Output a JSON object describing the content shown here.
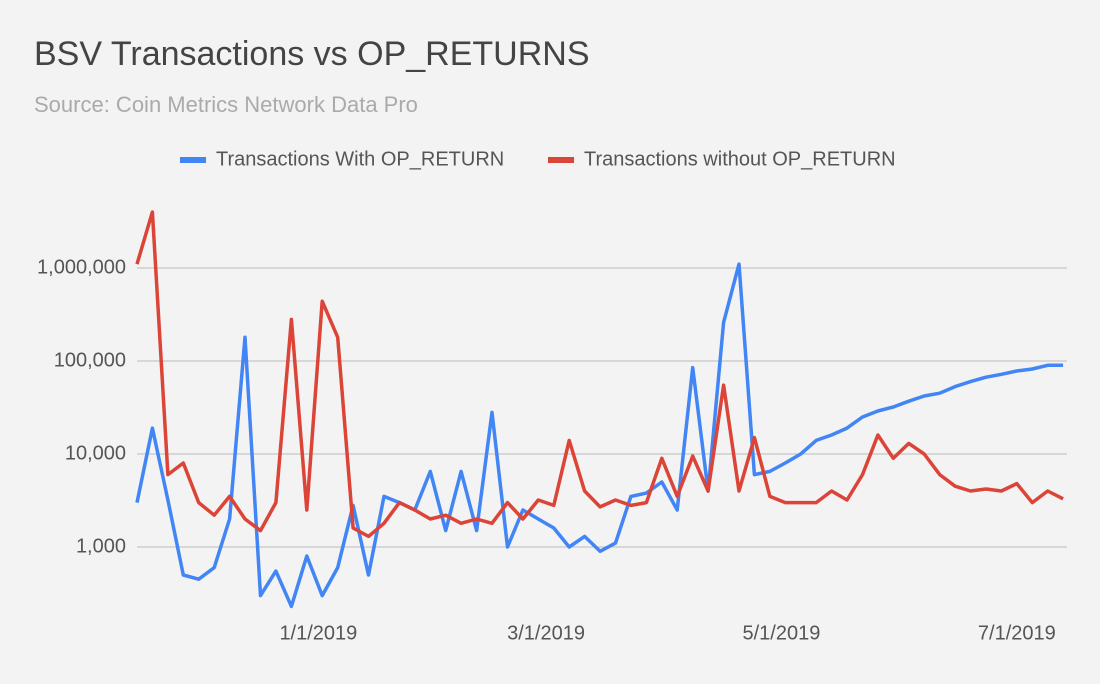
{
  "chart_data": {
    "type": "line",
    "title": "BSV Transactions vs OP_RETURNS",
    "subtitle": "Source: Coin Metrics Network Data Pro",
    "x": [
      "11/15/2018",
      "11/19/2018",
      "11/23/2018",
      "11/27/2018",
      "12/1/2018",
      "12/5/2018",
      "12/9/2018",
      "12/13/2018",
      "12/17/2018",
      "12/21/2018",
      "12/25/2018",
      "12/29/2018",
      "1/2/2019",
      "1/6/2019",
      "1/10/2019",
      "1/14/2019",
      "1/18/2019",
      "1/22/2019",
      "1/26/2019",
      "1/30/2019",
      "2/3/2019",
      "2/7/2019",
      "2/11/2019",
      "2/15/2019",
      "2/19/2019",
      "2/23/2019",
      "2/27/2019",
      "3/3/2019",
      "3/7/2019",
      "3/11/2019",
      "3/15/2019",
      "3/19/2019",
      "3/23/2019",
      "3/27/2019",
      "3/31/2019",
      "4/4/2019",
      "4/8/2019",
      "4/12/2019",
      "4/16/2019",
      "4/20/2019",
      "4/24/2019",
      "4/28/2019",
      "5/2/2019",
      "5/6/2019",
      "5/10/2019",
      "5/14/2019",
      "5/18/2019",
      "5/22/2019",
      "5/26/2019",
      "5/30/2019",
      "6/3/2019",
      "6/7/2019",
      "6/11/2019",
      "6/15/2019",
      "6/19/2019",
      "6/23/2019",
      "6/27/2019",
      "7/1/2019",
      "7/5/2019",
      "7/9/2019",
      "7/13/2019"
    ],
    "series": [
      {
        "name": "Transactions With OP_RETURN",
        "color": "#4285f4",
        "values": [
          3000,
          19000,
          3200,
          500,
          450,
          600,
          2000,
          180000,
          300,
          550,
          230,
          800,
          300,
          600,
          2800,
          500,
          3500,
          3000,
          2500,
          6500,
          1500,
          6500,
          1500,
          28000,
          1000,
          2500,
          2000,
          1600,
          1000,
          1300,
          900,
          1100,
          3500,
          3800,
          5000,
          2500,
          85000,
          4000,
          260000,
          1100000,
          6000,
          6500,
          8000,
          10000,
          14000,
          16000,
          19000,
          25000,
          29000,
          32000,
          37000,
          42000,
          45000,
          53000,
          60000,
          67000,
          72000,
          78000,
          82000,
          90000,
          90000
        ]
      },
      {
        "name": "Transactions without OP_RETURN",
        "color": "#db4437",
        "values": [
          1100000,
          4000000,
          6000,
          8000,
          3000,
          2200,
          3500,
          2000,
          1500,
          3000,
          280000,
          2500,
          440000,
          180000,
          1600,
          1300,
          1800,
          3000,
          2500,
          2000,
          2200,
          1800,
          2000,
          1800,
          3000,
          2000,
          3200,
          2800,
          14000,
          4000,
          2700,
          3200,
          2800,
          3000,
          9000,
          3500,
          9500,
          4000,
          55000,
          4000,
          15000,
          3500,
          3000,
          3000,
          3000,
          4000,
          3200,
          6000,
          16000,
          9000,
          13000,
          10000,
          6000,
          4500,
          4000,
          4200,
          4000,
          4800,
          3000,
          4000,
          3300
        ]
      }
    ],
    "xlim": [
      "11/15/2018",
      "7/14/2019"
    ],
    "xticks": [
      "1/1/2019",
      "3/1/2019",
      "5/1/2019",
      "7/1/2019"
    ],
    "ylim": [
      200,
      10000000
    ],
    "yticks": [
      {
        "value": 1000,
        "label": "1,000"
      },
      {
        "value": 10000,
        "label": "10,000"
      },
      {
        "value": 100000,
        "label": "100,000"
      },
      {
        "value": 1000000,
        "label": "1,000,000"
      }
    ],
    "yscale": "log",
    "grid": true,
    "legend": "top"
  }
}
